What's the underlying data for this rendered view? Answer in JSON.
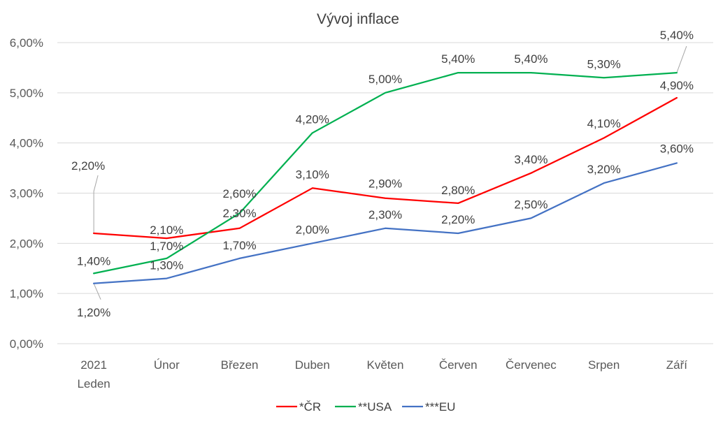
{
  "chart_data": {
    "type": "line",
    "title": "Vývoj inflace",
    "categories": [
      "2021\nLeden",
      "Únor",
      "Březen",
      "Duben",
      "Květen",
      "Červen",
      "Červenec",
      "Srpen",
      "Září"
    ],
    "y_ticks": [
      "0,00%",
      "1,00%",
      "2,00%",
      "3,00%",
      "4,00%",
      "5,00%",
      "6,00%"
    ],
    "ylim": [
      0,
      6
    ],
    "grid": true,
    "legend_position": "bottom",
    "series": [
      {
        "name": "*ČR",
        "color": "#ff0000",
        "values": [
          2.2,
          2.1,
          2.3,
          3.1,
          2.9,
          2.8,
          3.4,
          4.1,
          4.9
        ],
        "labels": [
          "2,20%",
          "2,10%",
          "2,30%",
          "3,10%",
          "2,90%",
          "2,80%",
          "3,40%",
          "4,10%",
          "4,90%"
        ]
      },
      {
        "name": "**USA",
        "color": "#00b050",
        "values": [
          1.4,
          1.7,
          2.6,
          4.2,
          5.0,
          5.4,
          5.4,
          5.3,
          5.4
        ],
        "labels": [
          "1,40%",
          "1,70%",
          "2,60%",
          "4,20%",
          "5,00%",
          "5,40%",
          "5,40%",
          "5,30%",
          "5,40%"
        ]
      },
      {
        "name": "***EU",
        "color": "#4472c4",
        "values": [
          1.2,
          1.3,
          1.7,
          2.0,
          2.3,
          2.2,
          2.5,
          3.2,
          3.6
        ],
        "labels": [
          "1,20%",
          "1,30%",
          "1,70%",
          "2,00%",
          "2,30%",
          "2,20%",
          "2,50%",
          "3,20%",
          "3,60%"
        ]
      }
    ]
  }
}
